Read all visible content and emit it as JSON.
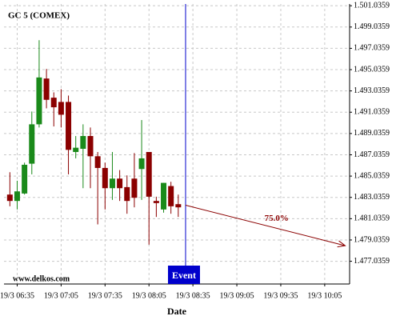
{
  "chart_data": {
    "type": "candlestick",
    "title": "GC 5 (COMEX)",
    "x_label": "Date",
    "watermark": "www.delkos.com",
    "x": [
      "19/3 06:30",
      "19/3 06:35",
      "19/3 06:40",
      "19/3 06:45",
      "19/3 06:50",
      "19/3 06:55",
      "19/3 07:00",
      "19/3 07:05",
      "19/3 07:10",
      "19/3 07:15",
      "19/3 07:20",
      "19/3 07:25",
      "19/3 07:30",
      "19/3 07:35",
      "19/3 07:40",
      "19/3 07:45",
      "19/3 07:50",
      "19/3 07:55",
      "19/3 08:00",
      "19/3 08:05",
      "19/3 08:10",
      "19/3 08:15",
      "19/3 08:20",
      "19/3 08:25"
    ],
    "open": [
      1.4833,
      1.4827,
      1.4834,
      1.4862,
      1.4899,
      1.4942,
      1.4924,
      1.492,
      1.492,
      1.4873,
      1.4876,
      1.4888,
      1.4869,
      1.4858,
      1.4839,
      1.4848,
      1.484,
      1.4848,
      1.4857,
      1.4873,
      1.4827,
      1.4819,
      1.4841,
      1.4824
    ],
    "high": [
      1.4854,
      1.4846,
      1.4863,
      1.4911,
      1.4978,
      1.4951,
      1.4929,
      1.4932,
      1.4926,
      1.4888,
      1.4899,
      1.4896,
      1.4873,
      1.4863,
      1.4873,
      1.4856,
      1.4851,
      1.4872,
      1.4903,
      1.4873,
      1.4831,
      1.4844,
      1.4845,
      1.4833
    ],
    "low": [
      1.4822,
      1.4819,
      1.4833,
      1.4852,
      1.4896,
      1.4914,
      1.4897,
      1.4896,
      1.4852,
      1.4867,
      1.4839,
      1.4839,
      1.4805,
      1.4819,
      1.4828,
      1.4827,
      1.4815,
      1.4821,
      1.4828,
      1.4786,
      1.4812,
      1.4816,
      1.4815,
      1.4812
    ],
    "close": [
      1.4827,
      1.4836,
      1.4861,
      1.4899,
      1.4943,
      1.4922,
      1.4915,
      1.4908,
      1.4875,
      1.4877,
      1.4888,
      1.4869,
      1.4858,
      1.4839,
      1.4848,
      1.4839,
      1.4827,
      1.483,
      1.4867,
      1.4831,
      1.4825,
      1.4844,
      1.4822,
      1.4821
    ],
    "up_color": "#1a8a1a",
    "down_color": "#8b0000",
    "xlim": [
      "19/3 06:26",
      "19/3 10:22"
    ],
    "xticks": [
      "19/3 06:35",
      "19/3 07:05",
      "19/3 07:35",
      "19/3 08:05",
      "19/3 08:35",
      "19/3 09:05",
      "19/3 09:35",
      "19/3 10:05"
    ],
    "ylim": [
      1.4749,
      1.5012
    ],
    "yticks": [
      {
        "value": 1.4770359,
        "label": "1.477.0359"
      },
      {
        "value": 1.4790359,
        "label": "1.479.0359"
      },
      {
        "value": 1.4810359,
        "label": "1.481.0359"
      },
      {
        "value": 1.4830359,
        "label": "1.483.0359"
      },
      {
        "value": 1.4850359,
        "label": "1.485.0359"
      },
      {
        "value": 1.4870359,
        "label": "1.487.0359"
      },
      {
        "value": 1.4890359,
        "label": "1.489.0359"
      },
      {
        "value": 1.4910359,
        "label": "1.491.0359"
      },
      {
        "value": 1.4930359,
        "label": "1.493.0359"
      },
      {
        "value": 1.4950359,
        "label": "1.495.0359"
      },
      {
        "value": 1.4970359,
        "label": "1.497.0359"
      },
      {
        "value": 1.4990359,
        "label": "1.499.0359"
      },
      {
        "value": 1.5010359,
        "label": "1.501.0359"
      }
    ],
    "grid": true,
    "event": {
      "x": "19/3 08:30",
      "label": "Event",
      "color": "#0000cc"
    },
    "arrow": {
      "x0": "19/3 08:30",
      "y0": 1.4823,
      "x1": "19/3 10:19",
      "y1": 1.4785,
      "label": "75.0%",
      "color": "#8b0000"
    }
  }
}
